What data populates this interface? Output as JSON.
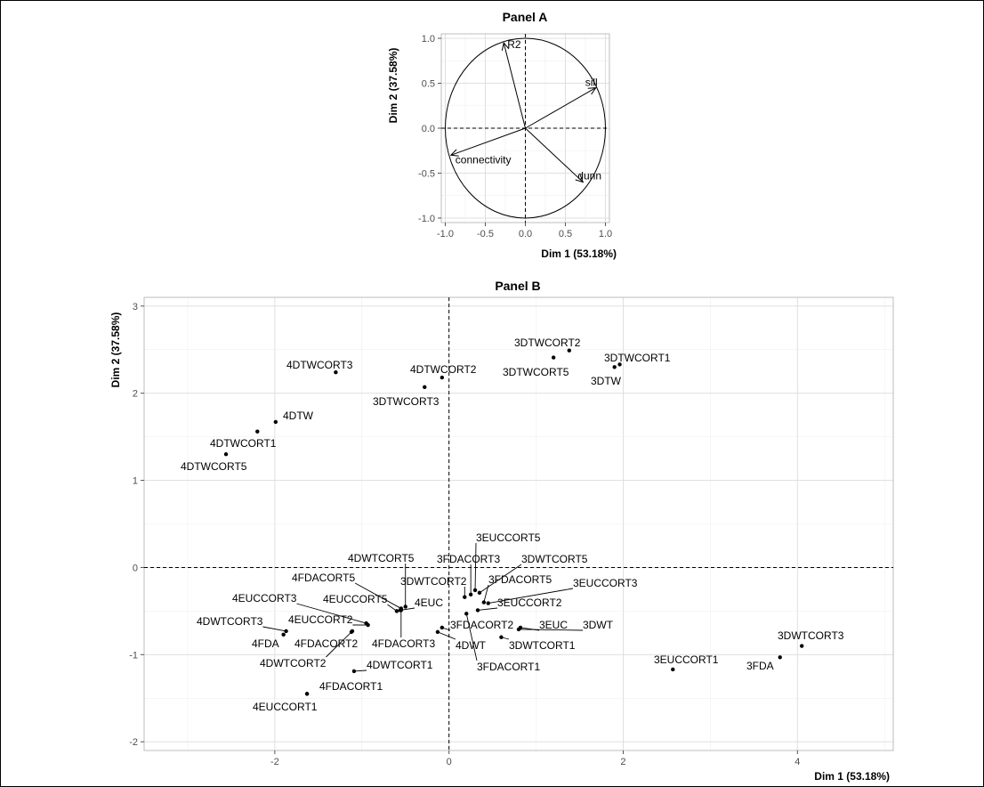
{
  "chart_data": [
    {
      "type": "scatter",
      "title": "Panel A",
      "xlabel": "Dim 1 (53.18%)",
      "ylabel": "Dim 2 (37.58%)",
      "xlim": [
        -1.05,
        1.05
      ],
      "ylim": [
        -1.05,
        1.05
      ],
      "xticks": [
        "-1.0",
        "-0.5",
        "0.0",
        "0.5",
        "1.0"
      ],
      "yticks": [
        "-1.0",
        "-0.5",
        "0.0",
        "0.5",
        "1.0"
      ],
      "grid": true,
      "unit_circle": true,
      "variables": [
        {
          "name": "R2",
          "x": -0.27,
          "y": 0.95
        },
        {
          "name": "sill",
          "x": 0.88,
          "y": 0.45
        },
        {
          "name": "connectivity",
          "x": -0.93,
          "y": -0.3
        },
        {
          "name": "dunn",
          "x": 0.72,
          "y": -0.6
        }
      ]
    },
    {
      "type": "scatter",
      "title": "Panel B",
      "xlabel": "Dim 1 (53.18%)",
      "ylabel": "Dim 2 (37.58%)",
      "xlim": [
        -3.5,
        5.1
      ],
      "ylim": [
        -2.1,
        3.1
      ],
      "xticks": [
        "-2",
        "0",
        "2",
        "4"
      ],
      "yticks": [
        "-2",
        "-1",
        "0",
        "1",
        "2",
        "3"
      ],
      "grid": true,
      "points": [
        {
          "label": "3DTWCORT2",
          "x": 1.38,
          "y": 2.49
        },
        {
          "label": "3DTWCORT1",
          "x": 1.96,
          "y": 2.33
        },
        {
          "label": "3DTWCORT5",
          "x": 1.2,
          "y": 2.41
        },
        {
          "label": "3DTW",
          "x": 1.9,
          "y": 2.3
        },
        {
          "label": "4DTWCORT3",
          "x": -1.3,
          "y": 2.24
        },
        {
          "label": "4DTWCORT2",
          "x": -0.08,
          "y": 2.18
        },
        {
          "label": "3DTWCORT3",
          "x": -0.28,
          "y": 2.07
        },
        {
          "label": "4DTW",
          "x": -1.99,
          "y": 1.67
        },
        {
          "label": "4DTWCORT1",
          "x": -2.2,
          "y": 1.56
        },
        {
          "label": "4DTWCORT5",
          "x": -2.56,
          "y": 1.3
        },
        {
          "label": "3EUCCORT5",
          "x": 0.3,
          "y": -0.26
        },
        {
          "label": "4DWTCORT5",
          "x": -0.5,
          "y": -0.45
        },
        {
          "label": "3FDACORT3",
          "x": 0.25,
          "y": -0.31
        },
        {
          "label": "3DWTCORT5",
          "x": 0.35,
          "y": -0.29
        },
        {
          "label": "4FDACORT5",
          "x": -0.55,
          "y": -0.47
        },
        {
          "label": "3DWTCORT2",
          "x": 0.18,
          "y": -0.34
        },
        {
          "label": "3FDACORT5",
          "x": 0.4,
          "y": -0.4
        },
        {
          "label": "3EUCCORT3",
          "x": 0.45,
          "y": -0.41
        },
        {
          "label": "4EUCCORT3",
          "x": -0.95,
          "y": -0.64
        },
        {
          "label": "4EUCCORT5",
          "x": -0.6,
          "y": -0.5
        },
        {
          "label": "4EUC",
          "x": -0.56,
          "y": -0.49
        },
        {
          "label": "3EUCCORT2",
          "x": 0.33,
          "y": -0.49
        },
        {
          "label": "4DWTCORT3",
          "x": -1.87,
          "y": -0.73
        },
        {
          "label": "4EUCCORT2",
          "x": -0.93,
          "y": -0.66
        },
        {
          "label": "3FDACORT2",
          "x": -0.08,
          "y": -0.69
        },
        {
          "label": "3EUC",
          "x": 0.82,
          "y": -0.69
        },
        {
          "label": "3DWT",
          "x": 0.8,
          "y": -0.71
        },
        {
          "label": "4FDA",
          "x": -1.9,
          "y": -0.77
        },
        {
          "label": "4FDACORT2",
          "x": -1.12,
          "y": -0.74
        },
        {
          "label": "4FDACORT3",
          "x": -0.55,
          "y": -0.49
        },
        {
          "label": "4DWT",
          "x": -0.13,
          "y": -0.74
        },
        {
          "label": "3DWTCORT1",
          "x": 0.6,
          "y": -0.8
        },
        {
          "label": "3FDACORT1",
          "x": 0.2,
          "y": -0.53
        },
        {
          "label": "3DWTCORT3",
          "x": 4.05,
          "y": -0.9
        },
        {
          "label": "3EUCCORT1",
          "x": 2.57,
          "y": -1.17
        },
        {
          "label": "3FDA",
          "x": 3.8,
          "y": -1.03
        },
        {
          "label": "4DWTCORT2",
          "x": -1.11,
          "y": -0.73
        },
        {
          "label": "4DWTCORT1",
          "x": -1.09,
          "y": -1.19
        },
        {
          "label": "4FDACORT1",
          "x": -1.63,
          "y": -1.45
        },
        {
          "label": "4EUCCORT1",
          "x": -1.63,
          "y": -1.45
        }
      ]
    }
  ]
}
